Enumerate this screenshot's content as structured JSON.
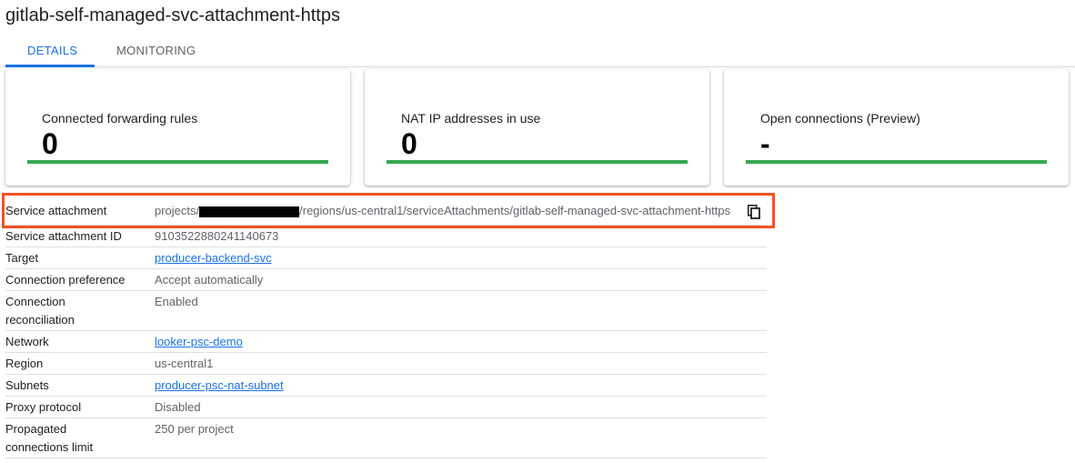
{
  "title": "gitlab-self-managed-svc-attachment-https",
  "tabs": [
    {
      "label": "DETAILS",
      "active": true
    },
    {
      "label": "MONITORING",
      "active": false
    }
  ],
  "cards": [
    {
      "label": "Connected forwarding rules",
      "value": "0"
    },
    {
      "label": "NAT IP addresses in use",
      "value": "0"
    },
    {
      "label": "Open connections (Preview)",
      "value": "-"
    }
  ],
  "details": {
    "service_attachment": {
      "label": "Service attachment",
      "prefix": "projects/",
      "suffix": "/regions/us-central1/serviceAttachments/gitlab-self-managed-svc-attachment-https",
      "copy_icon": "copy-icon"
    },
    "id": {
      "label": "Service attachment ID",
      "value": "9103522880241140673"
    },
    "target": {
      "label": "Target",
      "value": "producer-backend-svc"
    },
    "conn_pref": {
      "label": "Connection preference",
      "value": "Accept automatically"
    },
    "conn_recon": {
      "label": "Connection reconciliation",
      "value": "Enabled"
    },
    "network": {
      "label": "Network",
      "value": "looker-psc-demo"
    },
    "region": {
      "label": "Region",
      "value": "us-central1"
    },
    "subnets": {
      "label": "Subnets",
      "value": "producer-psc-nat-subnet"
    },
    "proxy": {
      "label": "Proxy protocol",
      "value": "Disabled"
    },
    "limit": {
      "label": "Propagated connections limit",
      "value": "250 per project"
    }
  },
  "colors": {
    "accent": "#1a73e8",
    "bar": "#34a853",
    "highlight": "#f4511e"
  }
}
